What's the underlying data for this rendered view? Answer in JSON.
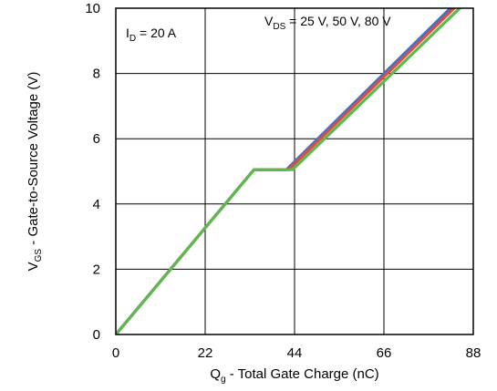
{
  "chart_data": {
    "type": "line",
    "xlabel": {
      "main": "Q",
      "sub": "g",
      "rest": " - Total Gate Charge (nC)"
    },
    "ylabel": {
      "main": "V",
      "sub": "GS",
      "rest": " - Gate-to-Source Voltage (V)"
    },
    "xlim": [
      0,
      88
    ],
    "ylim": [
      0,
      10
    ],
    "xticks": [
      0,
      22,
      44,
      66,
      88
    ],
    "yticks": [
      0,
      2,
      4,
      6,
      8,
      10
    ],
    "grid": true,
    "annotations": {
      "id": {
        "main": "I",
        "sub": "D",
        "rest": " = 20 A"
      },
      "vds": {
        "main": "V",
        "sub": "DS",
        "rest": " = 25 V, 50 V, 80 V"
      }
    },
    "series": [
      {
        "color": "#4a6fc0",
        "x": [
          0,
          34,
          42,
          84
        ],
        "y": [
          0,
          5.05,
          5.05,
          10.2
        ]
      },
      {
        "color": "#d85040",
        "x": [
          0,
          34,
          42.5,
          84.5
        ],
        "y": [
          0,
          5.05,
          5.05,
          10.15
        ]
      },
      {
        "color": "#5cb84f",
        "x": [
          0,
          34,
          43.5,
          85.5
        ],
        "y": [
          0,
          5.05,
          5.05,
          10.1
        ]
      }
    ]
  }
}
